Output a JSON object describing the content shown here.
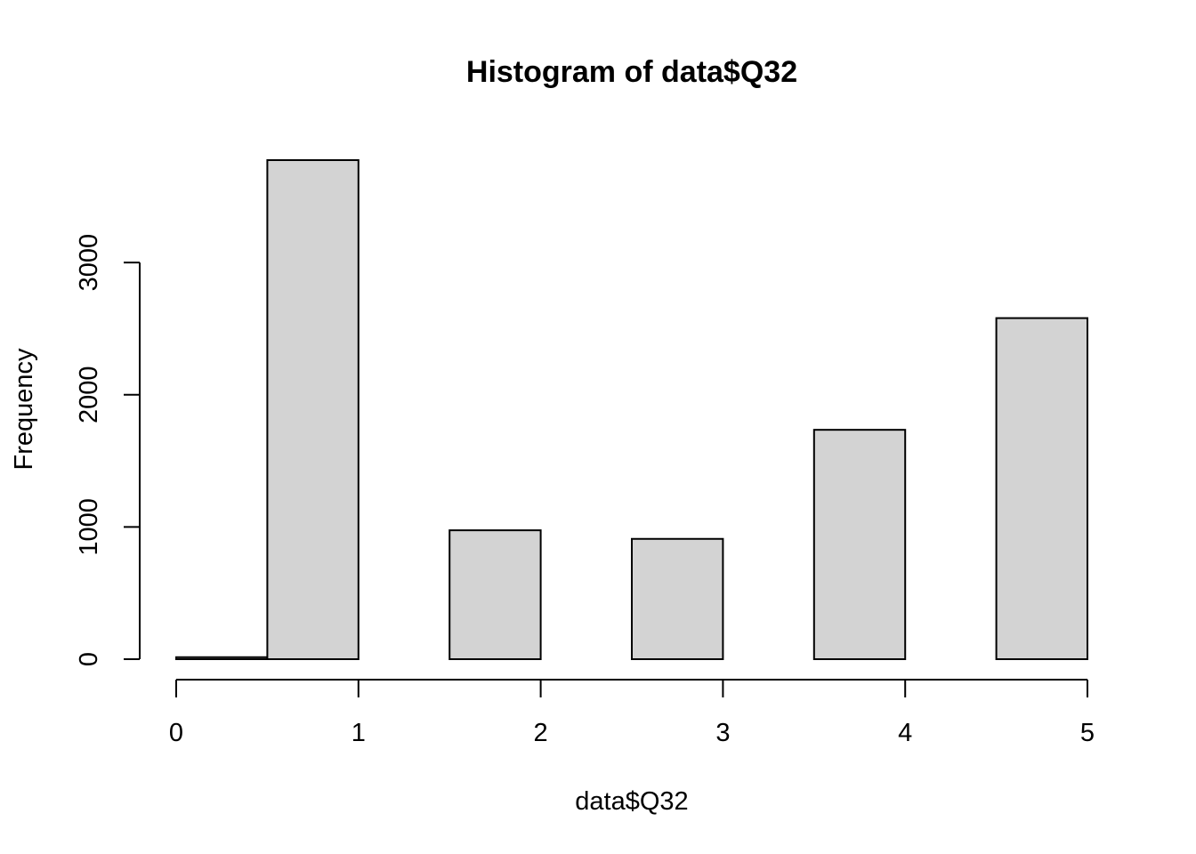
{
  "chart_data": {
    "type": "bar",
    "title": "Histogram of data$Q32",
    "xlabel": "data$Q32",
    "ylabel": "Frequency",
    "bins": [
      {
        "start": 0.0,
        "end": 0.5,
        "count": 15
      },
      {
        "start": 0.5,
        "end": 1.0,
        "count": 3775
      },
      {
        "start": 1.0,
        "end": 1.5,
        "count": 0
      },
      {
        "start": 1.5,
        "end": 2.0,
        "count": 975
      },
      {
        "start": 2.0,
        "end": 2.5,
        "count": 0
      },
      {
        "start": 2.5,
        "end": 3.0,
        "count": 910
      },
      {
        "start": 3.0,
        "end": 3.5,
        "count": 0
      },
      {
        "start": 3.5,
        "end": 4.0,
        "count": 1735
      },
      {
        "start": 4.0,
        "end": 4.5,
        "count": 0
      },
      {
        "start": 4.5,
        "end": 5.0,
        "count": 2580
      }
    ],
    "xlim": [
      0,
      5
    ],
    "ylim": [
      0,
      3775
    ],
    "x_ticks": [
      "0",
      "1",
      "2",
      "3",
      "4",
      "5"
    ],
    "y_ticks": [
      "0",
      "1000",
      "2000",
      "3000"
    ],
    "bar_fill": "#d3d3d3",
    "bar_stroke": "#000000",
    "grid": false,
    "legend": "none"
  }
}
